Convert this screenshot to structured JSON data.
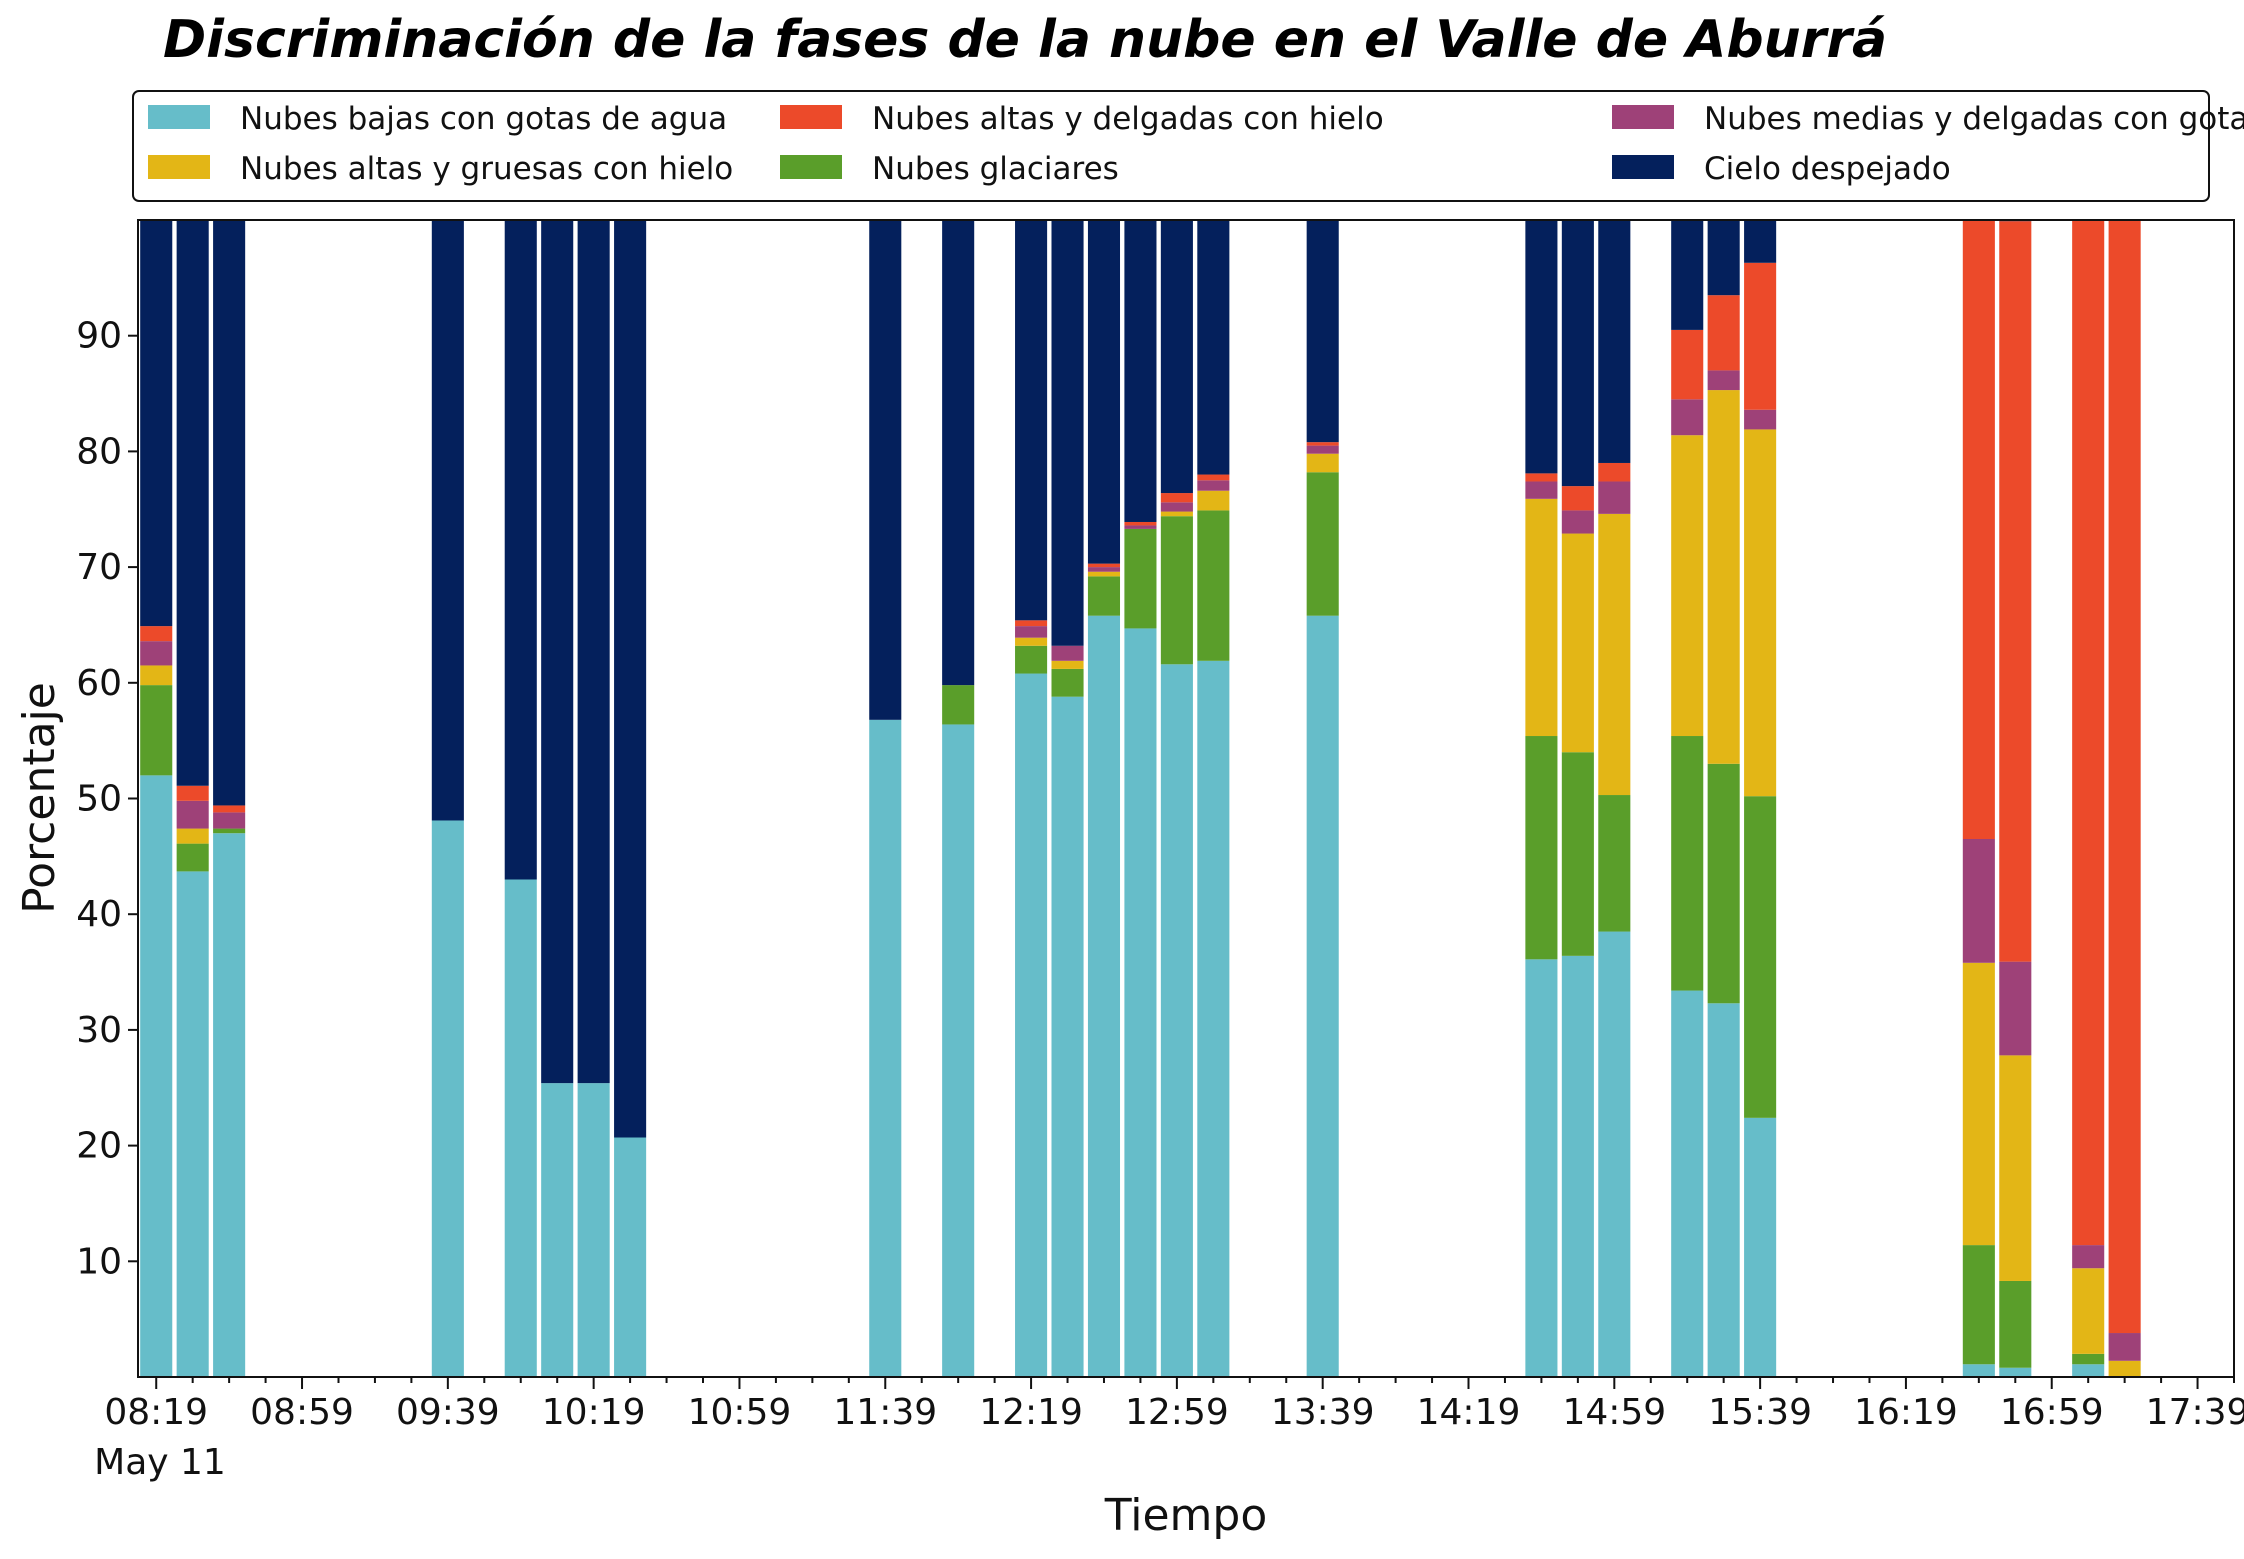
{
  "colors": {
    "low_water": "#66bdc9",
    "glacial": "#5a9e2a",
    "high_thick_ice": "#e3b616",
    "mid_thin_water": "#9e4178",
    "high_thin_ice": "#ec4a2a",
    "clear_sky": "#04205c"
  },
  "chart_data": {
    "type": "bar",
    "stacked": true,
    "title": "Discriminación de la fases de la nube en el Valle de Aburrá",
    "xlabel": "Tiempo",
    "ylabel": "Porcentaje",
    "ylim": [
      0,
      100
    ],
    "yticks": [
      "10",
      "20",
      "30",
      "40",
      "50",
      "60",
      "70",
      "80",
      "90"
    ],
    "xlim": [
      "08:14",
      "17:49"
    ],
    "xticks": [
      "08:19",
      "08:59",
      "09:39",
      "10:19",
      "10:59",
      "11:39",
      "12:19",
      "12:59",
      "13:39",
      "14:19",
      "14:59",
      "15:39",
      "16:19",
      "16:59",
      "17:39"
    ],
    "xdate_label": "May 11",
    "grid": false,
    "legend_position": "top",
    "series": [
      {
        "name": "Nubes bajas con gotas de agua",
        "color_key": "low_water"
      },
      {
        "name": "Nubes glaciares",
        "color_key": "glacial"
      },
      {
        "name": "Nubes altas y gruesas con hielo",
        "color_key": "high_thick_ice"
      },
      {
        "name": "Nubes medias y delgadas con gotas de agua",
        "color_key": "mid_thin_water"
      },
      {
        "name": "Nubes altas y delgadas con hielo",
        "color_key": "high_thin_ice"
      },
      {
        "name": "Cielo despejado",
        "color_key": "clear_sky"
      }
    ],
    "legend_order": [
      0,
      2,
      4,
      1,
      3,
      5
    ],
    "categories": [
      "08:19",
      "08:29",
      "08:39",
      "09:39",
      "09:59",
      "10:09",
      "10:19",
      "10:29",
      "11:39",
      "11:59",
      "12:19",
      "12:29",
      "12:39",
      "12:49",
      "12:59",
      "13:09",
      "13:39",
      "14:39",
      "14:49",
      "14:59",
      "15:19",
      "15:29",
      "15:39",
      "16:39",
      "16:49",
      "17:09",
      "17:19"
    ],
    "values": [
      [
        52.0,
        7.8,
        1.7,
        2.1,
        1.3,
        35.1
      ],
      [
        43.7,
        2.4,
        1.3,
        2.4,
        1.3,
        48.9
      ],
      [
        47.0,
        0.4,
        0.0,
        1.4,
        0.6,
        50.6
      ],
      [
        48.1,
        0.0,
        0.0,
        0.0,
        0.0,
        51.9
      ],
      [
        43.0,
        0.0,
        0.0,
        0.0,
        0.0,
        57.0
      ],
      [
        25.4,
        0.0,
        0.0,
        0.0,
        0.0,
        74.6
      ],
      [
        25.4,
        0.0,
        0.0,
        0.0,
        0.0,
        74.6
      ],
      [
        20.7,
        0.0,
        0.0,
        0.0,
        0.0,
        79.3
      ],
      [
        56.8,
        0.0,
        0.0,
        0.0,
        0.0,
        43.2
      ],
      [
        56.4,
        3.4,
        0.0,
        0.0,
        0.0,
        40.2
      ],
      [
        60.8,
        2.4,
        0.7,
        1.0,
        0.5,
        34.6
      ],
      [
        58.8,
        2.4,
        0.7,
        1.3,
        0.0,
        36.8
      ],
      [
        65.8,
        3.4,
        0.4,
        0.4,
        0.3,
        29.7
      ],
      [
        64.7,
        8.6,
        0.0,
        0.3,
        0.3,
        26.1
      ],
      [
        61.6,
        12.8,
        0.4,
        0.8,
        0.8,
        23.6
      ],
      [
        61.9,
        13.0,
        1.7,
        0.9,
        0.5,
        22.0
      ],
      [
        65.8,
        12.4,
        1.6,
        0.7,
        0.3,
        19.2
      ],
      [
        36.1,
        19.3,
        20.5,
        1.5,
        0.7,
        21.9
      ],
      [
        36.4,
        17.6,
        18.9,
        2.0,
        2.1,
        23.0
      ],
      [
        38.5,
        11.8,
        24.3,
        2.8,
        1.6,
        21.0
      ],
      [
        33.4,
        22.0,
        26.0,
        3.1,
        6.0,
        9.5
      ],
      [
        32.3,
        20.7,
        32.3,
        1.7,
        6.5,
        6.5
      ],
      [
        22.4,
        27.8,
        31.7,
        1.7,
        12.7,
        3.7
      ],
      [
        1.1,
        10.3,
        24.4,
        10.7,
        53.8,
        0.3
      ],
      [
        0.8,
        7.5,
        19.5,
        8.1,
        64.0,
        0.3
      ],
      [
        1.1,
        0.9,
        7.4,
        2.0,
        88.6,
        0.0
      ],
      [
        0.0,
        0.0,
        1.4,
        2.4,
        96.2,
        0.0
      ]
    ]
  }
}
